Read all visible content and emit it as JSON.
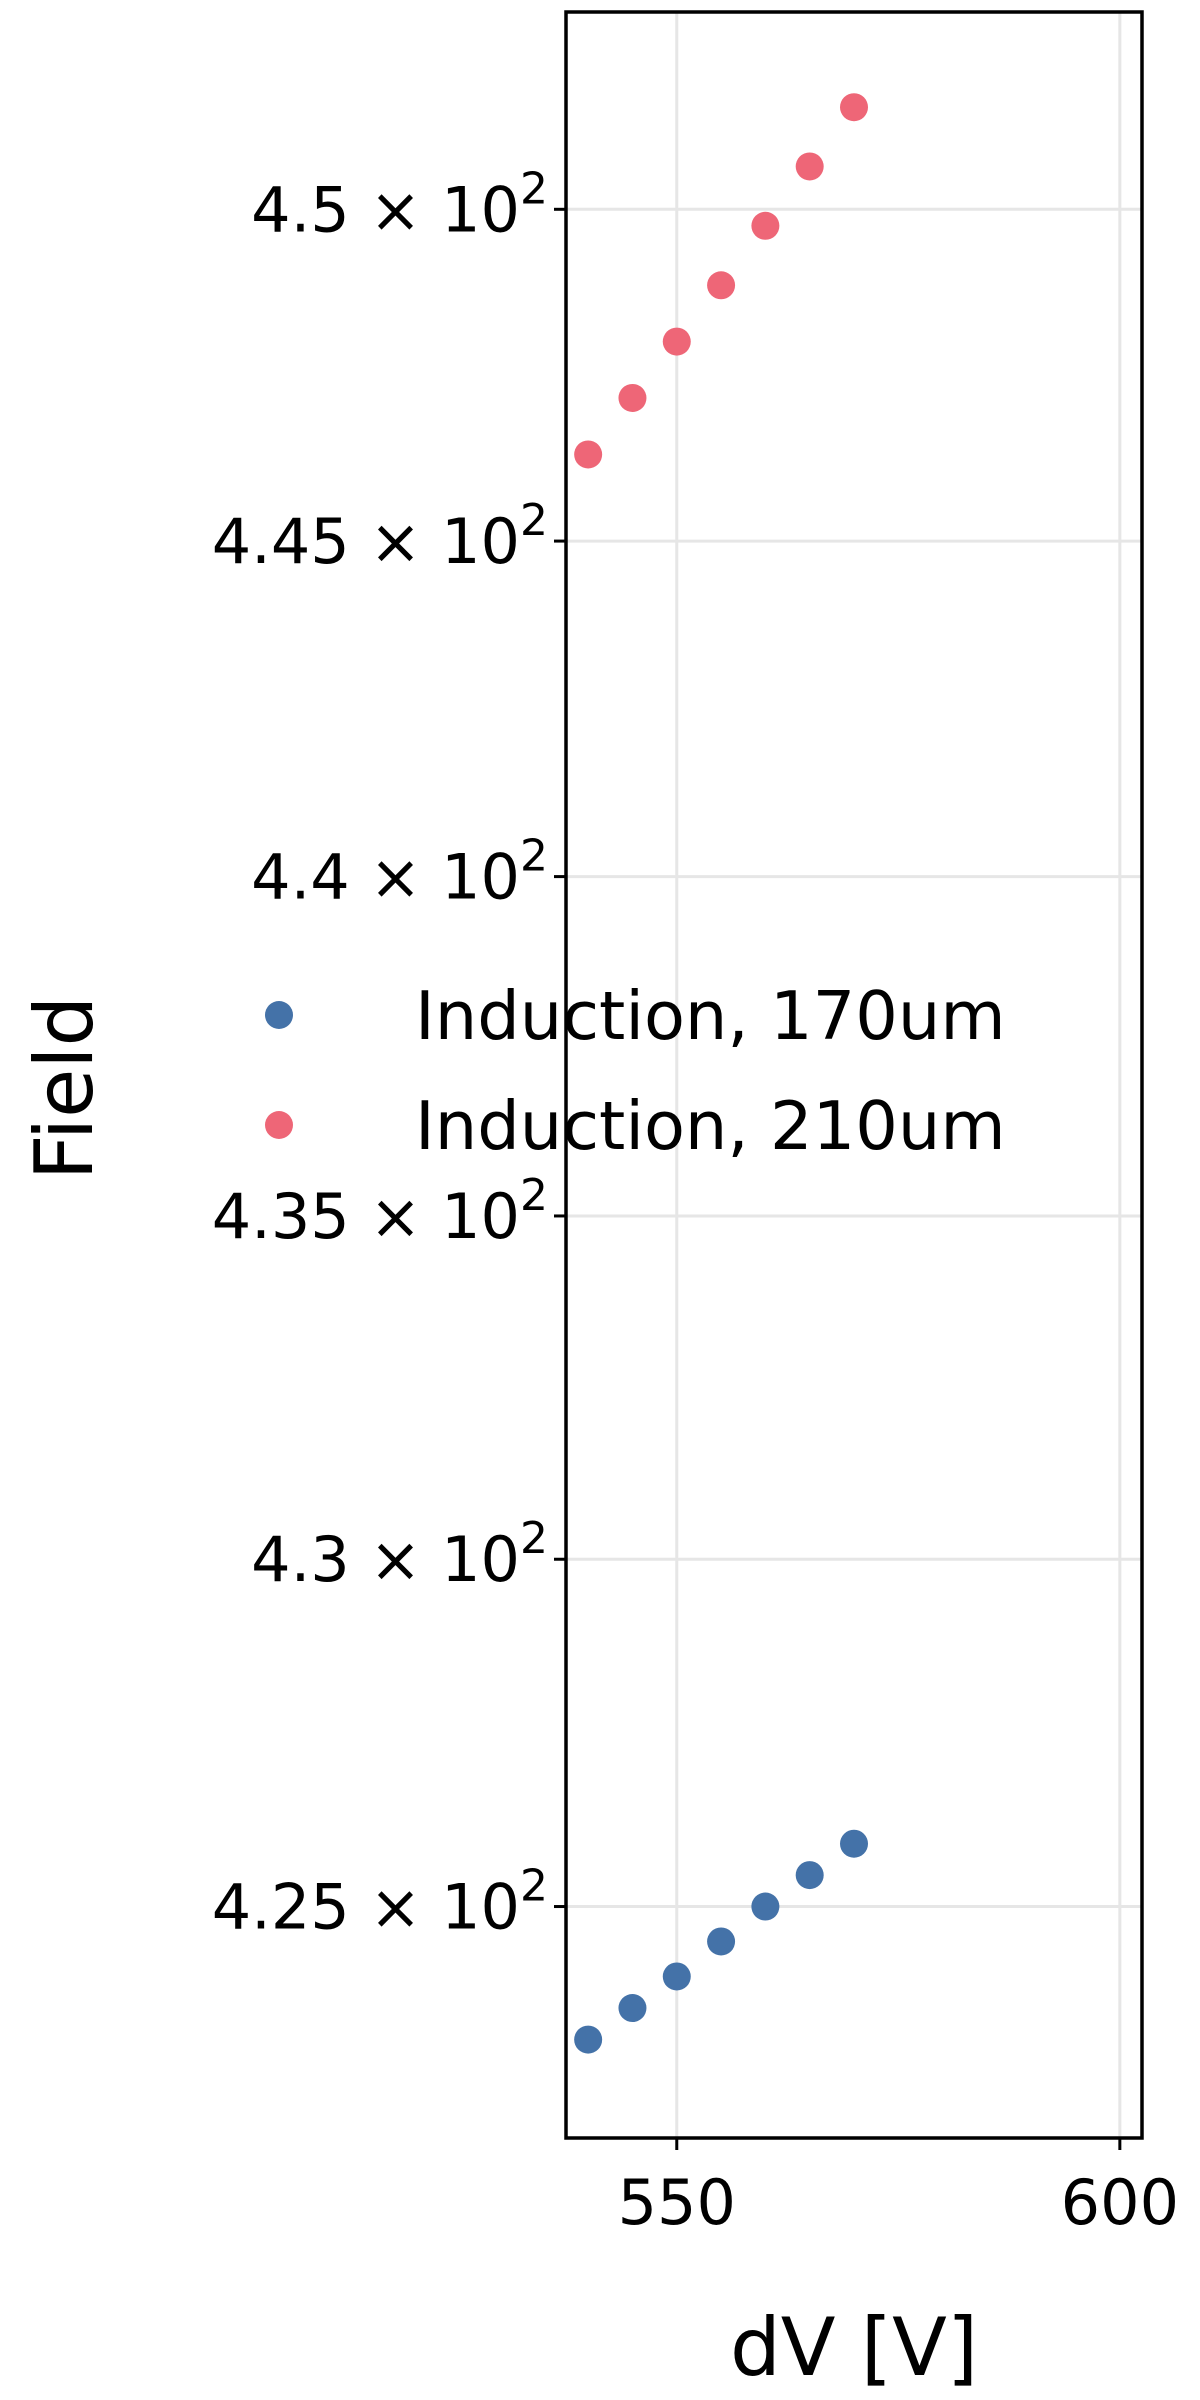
{
  "chart_data": {
    "type": "scatter",
    "title": "",
    "xlabel": "dV [V]",
    "ylabel": "Field",
    "xlim": [
      537.5,
      602.5
    ],
    "ylim": [
      421.7,
      453.0
    ],
    "yscale": "log",
    "grid": true,
    "legend_position": "center",
    "x_ticks": [
      {
        "value": 550,
        "label": "550"
      },
      {
        "value": 600,
        "label": "600"
      }
    ],
    "y_ticks": [
      {
        "value": 425,
        "mantissa": "4.25",
        "label": "4.25 × 10^2"
      },
      {
        "value": 430,
        "mantissa": "4.3",
        "label": "4.3 × 10^2"
      },
      {
        "value": 435,
        "mantissa": "4.35",
        "label": "4.35 × 10^2"
      },
      {
        "value": 440,
        "mantissa": "4.4",
        "label": "4.4 × 10^2"
      },
      {
        "value": 445,
        "mantissa": "4.45",
        "label": "4.45 × 10^2"
      },
      {
        "value": 450,
        "mantissa": "4.5",
        "label": "4.5 × 10^2"
      }
    ],
    "tick_multiplier": "× 10",
    "tick_exponent": "2",
    "series": [
      {
        "name": "Induction, 170um",
        "color": "#4472a8",
        "x": [
          540,
          545,
          550,
          555,
          560,
          565,
          570
        ],
        "y": [
          423.1,
          423.55,
          424.0,
          424.5,
          425.0,
          425.45,
          425.9
        ]
      },
      {
        "name": "Induction, 210um",
        "color": "#ee6677",
        "x": [
          540,
          545,
          550,
          555,
          560,
          565,
          570
        ],
        "y": [
          446.3,
          447.15,
          448.0,
          448.85,
          449.75,
          450.65,
          451.55
        ]
      }
    ]
  }
}
